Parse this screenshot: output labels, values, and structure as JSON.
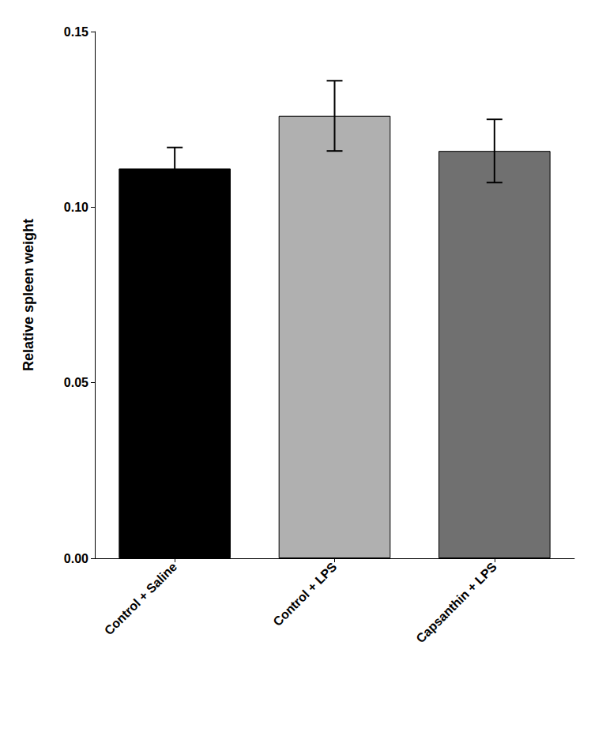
{
  "chart_data": {
    "type": "bar",
    "categories": [
      "Control + Saline",
      "Control + LPS",
      "Capsanthin + LPS"
    ],
    "values": [
      0.111,
      0.126,
      0.116
    ],
    "errors": [
      0.006,
      0.01,
      0.009
    ],
    "colors": [
      "#000000",
      "#b0b0b0",
      "#707070"
    ],
    "ylabel": "Relative spleen weight",
    "ylim": [
      0.0,
      0.15
    ],
    "yticks": [
      {
        "value": 0,
        "label": "0.00"
      },
      0.05,
      {
        "value": 0.1,
        "label": "0.10"
      },
      0.15
    ],
    "grid": false
  }
}
